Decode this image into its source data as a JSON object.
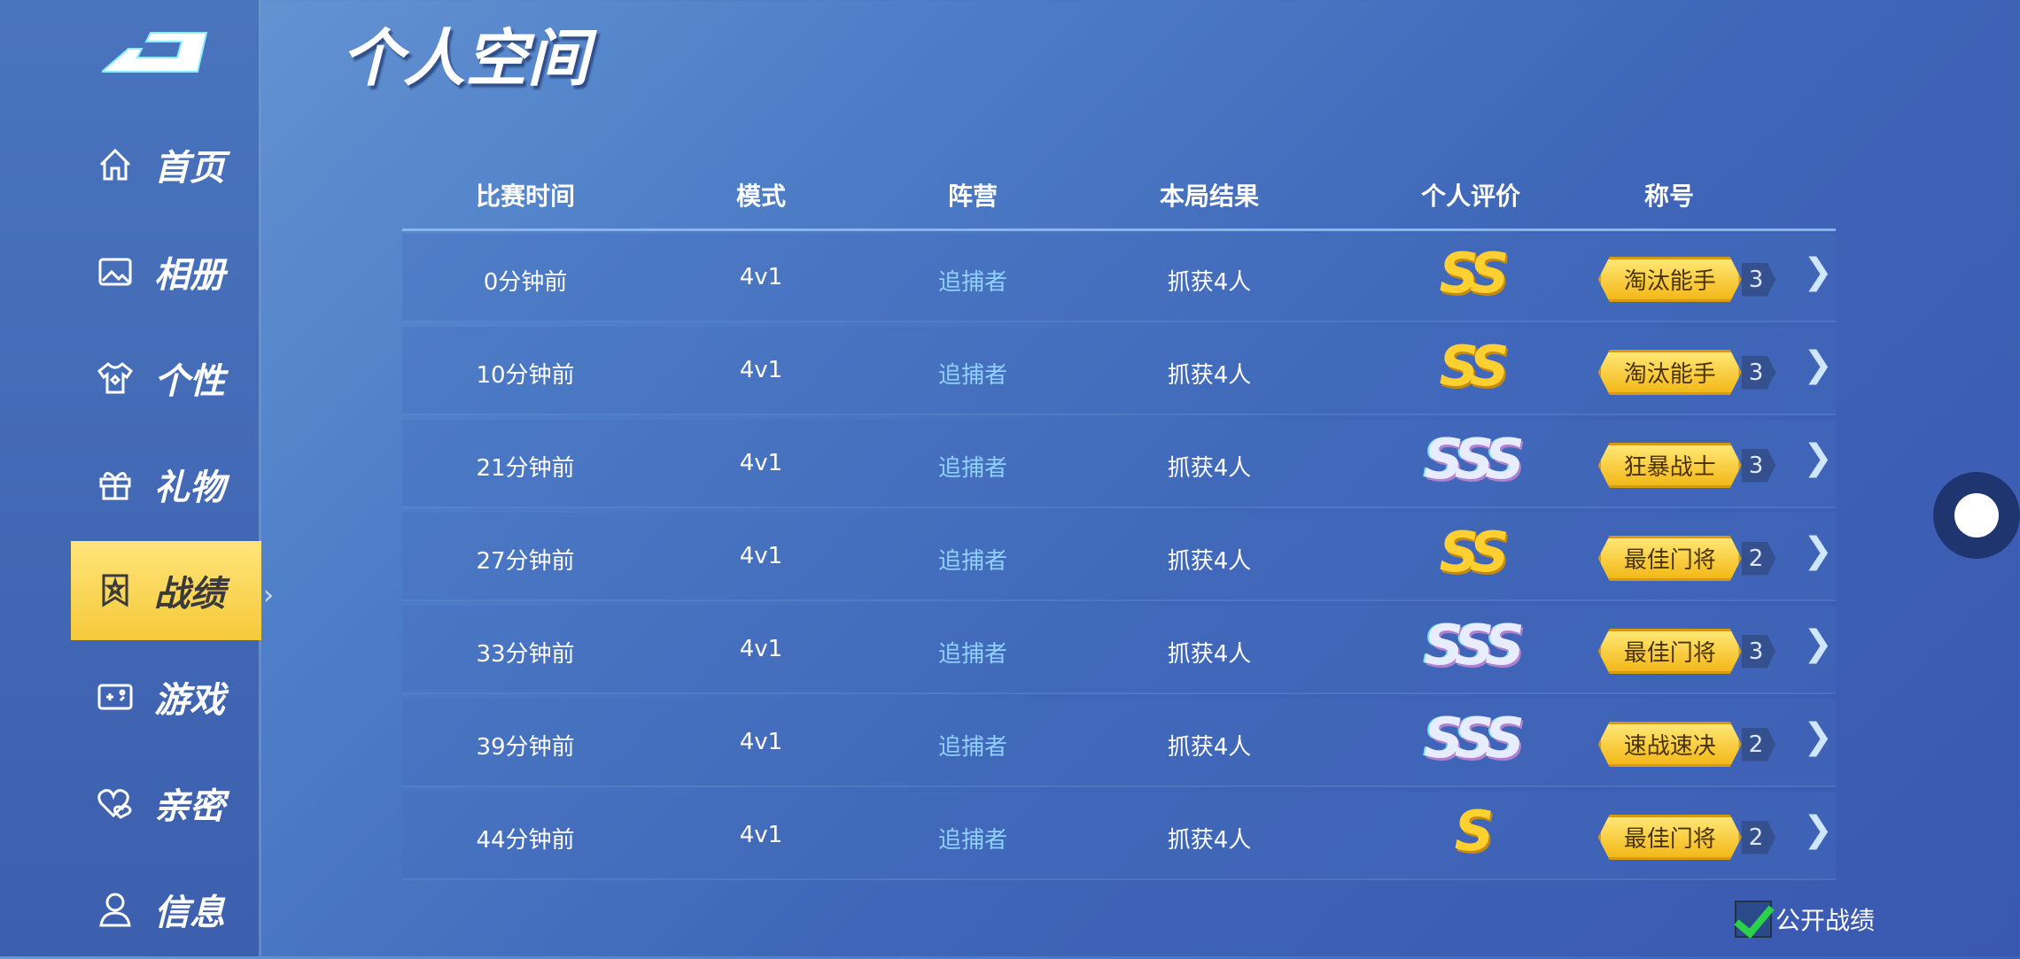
{
  "title": "个人空间",
  "sidebar": {
    "items": [
      {
        "label": "首页",
        "icon": "home-icon"
      },
      {
        "label": "相册",
        "icon": "image-icon"
      },
      {
        "label": "个性",
        "icon": "shirt-icon"
      },
      {
        "label": "礼物",
        "icon": "gift-icon"
      },
      {
        "label": "战绩",
        "icon": "record-badge-icon",
        "active": true
      },
      {
        "label": "游戏",
        "icon": "gamepad-icon"
      },
      {
        "label": "亲密",
        "icon": "hearts-icon"
      },
      {
        "label": "信息",
        "icon": "user-icon"
      }
    ]
  },
  "table": {
    "headers": [
      "比赛时间",
      "模式",
      "阵营",
      "本局结果",
      "个人评价",
      "称号"
    ],
    "rows": [
      {
        "time": "0分钟前",
        "mode": "4v1",
        "camp": "追捕者",
        "result": "抓获4人",
        "grade": "SS",
        "title": "淘汰能手",
        "level": "3"
      },
      {
        "time": "10分钟前",
        "mode": "4v1",
        "camp": "追捕者",
        "result": "抓获4人",
        "grade": "SS",
        "title": "淘汰能手",
        "level": "3"
      },
      {
        "time": "21分钟前",
        "mode": "4v1",
        "camp": "追捕者",
        "result": "抓获4人",
        "grade": "SSS",
        "title": "狂暴战士",
        "level": "3"
      },
      {
        "time": "27分钟前",
        "mode": "4v1",
        "camp": "追捕者",
        "result": "抓获4人",
        "grade": "SS",
        "title": "最佳门将",
        "level": "2"
      },
      {
        "time": "33分钟前",
        "mode": "4v1",
        "camp": "追捕者",
        "result": "抓获4人",
        "grade": "SSS",
        "title": "最佳门将",
        "level": "3"
      },
      {
        "time": "39分钟前",
        "mode": "4v1",
        "camp": "追捕者",
        "result": "抓获4人",
        "grade": "SSS",
        "title": "速战速决",
        "level": "2"
      },
      {
        "time": "44分钟前",
        "mode": "4v1",
        "camp": "追捕者",
        "result": "抓获4人",
        "grade": "S",
        "title": "最佳门将",
        "level": "2"
      }
    ]
  },
  "public_records": {
    "label": "公开战绩",
    "checked": true
  },
  "colors": {
    "accent": "#f5c93a",
    "camp": "#8fd0ff"
  }
}
